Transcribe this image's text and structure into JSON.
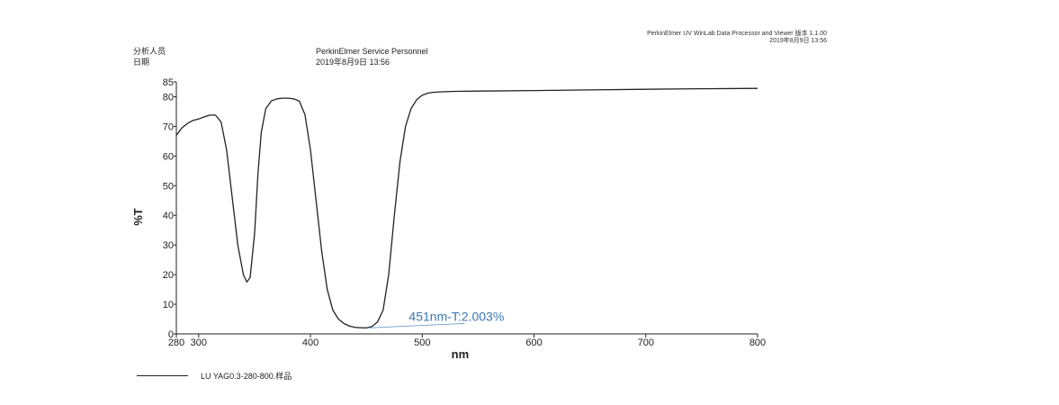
{
  "header": {
    "software": "PerkinElmer UV WinLab Data Processor and Viewer 版本 1.1.00",
    "printed": "2019年8月9日 13:56"
  },
  "meta": {
    "analyst_label": "分析人员",
    "date_label": "日期",
    "analyst_value": "PerkinElmer Service Personnel",
    "date_value": "2019年8月9日 13:56"
  },
  "chart_data": {
    "type": "line",
    "title": "",
    "xlabel": "nm",
    "ylabel": "%T",
    "xlim": [
      280,
      800
    ],
    "ylim": [
      0,
      85
    ],
    "xticks": [
      280,
      300,
      400,
      500,
      600,
      700,
      800
    ],
    "yticks": [
      0,
      10,
      20,
      30,
      40,
      50,
      60,
      70,
      80,
      85
    ],
    "grid": false,
    "legend_position": "bottom-left",
    "series": [
      {
        "name": "LU  YAG0.3-280-800.样品",
        "color": "#222222",
        "x": [
          280,
          285,
          290,
          295,
          300,
          305,
          310,
          315,
          320,
          325,
          330,
          335,
          340,
          343,
          346,
          350,
          353,
          356,
          360,
          365,
          370,
          375,
          380,
          385,
          390,
          395,
          400,
          405,
          410,
          415,
          420,
          425,
          430,
          435,
          440,
          445,
          450,
          455,
          460,
          465,
          470,
          475,
          480,
          485,
          490,
          495,
          500,
          505,
          510,
          520,
          530,
          550,
          600,
          650,
          700,
          750,
          800
        ],
        "y": [
          67,
          69.5,
          71,
          72,
          72.5,
          73.2,
          73.8,
          73.8,
          71.5,
          62,
          46,
          30,
          20,
          17.5,
          19,
          34,
          54,
          68,
          76,
          78.6,
          79.3,
          79.5,
          79.5,
          79.3,
          78.5,
          74,
          62,
          45,
          28,
          15,
          8,
          5,
          3.5,
          2.6,
          2.2,
          2.1,
          2.003,
          2.5,
          4,
          8,
          20,
          40,
          58,
          70,
          76,
          79,
          80.5,
          81.2,
          81.5,
          81.7,
          81.8,
          81.9,
          82.1,
          82.3,
          82.5,
          82.7,
          82.8
        ]
      }
    ],
    "annotations": [
      {
        "text": "451nm-T:2.003%",
        "x": 451,
        "y": 2.003
      }
    ]
  }
}
